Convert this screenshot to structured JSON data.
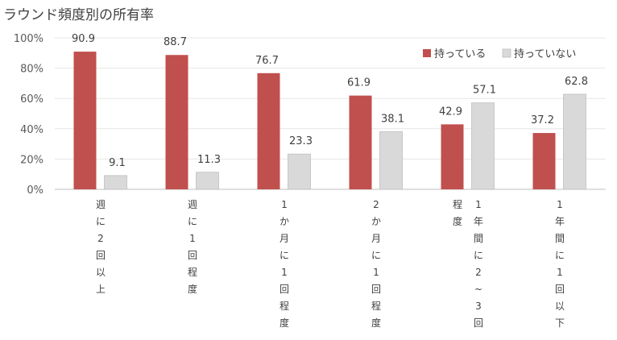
{
  "chart_data": {
    "type": "bar",
    "title": "ラウンド頻度別の所有率",
    "categories": [
      "週に2回以上",
      "週に1回程度",
      "1か月に1回程度",
      "2か月に1回程度",
      "1年間に2~3回程度",
      "1年間に1回以下"
    ],
    "category_columns": [
      [
        [
          "週",
          "に",
          "2",
          "回",
          "以",
          "上"
        ]
      ],
      [
        [
          "週",
          "に",
          "1",
          "回",
          "程",
          "度"
        ]
      ],
      [
        [
          "1",
          "か",
          "月",
          "に",
          "1",
          "回",
          "程",
          "度"
        ]
      ],
      [
        [
          "2",
          "か",
          "月",
          "に",
          "1",
          "回",
          "程",
          "度"
        ]
      ],
      [
        [
          "程",
          "度"
        ],
        [
          "1",
          "年",
          "間",
          "に",
          "2",
          "~",
          "3",
          "回"
        ]
      ],
      [
        [
          "1",
          "年",
          "間",
          "に",
          "1",
          "回",
          "以",
          "下"
        ]
      ]
    ],
    "series": [
      {
        "name": "持っている",
        "values": [
          90.9,
          88.7,
          76.7,
          61.9,
          42.9,
          37.2
        ],
        "color": "#c0504d"
      },
      {
        "name": "持っていない",
        "values": [
          9.1,
          11.3,
          23.3,
          38.1,
          57.1,
          62.8
        ],
        "color": "#d9d9d9"
      }
    ],
    "data_labels": [
      [
        "90.9",
        "88.7",
        "76.7",
        "61.9",
        "42.9",
        "37.2"
      ],
      [
        "9.1",
        "11.3",
        "23.3",
        "38.1",
        "57.1",
        "62.8"
      ]
    ],
    "ylim": [
      0,
      100
    ],
    "yticks": [
      "0%",
      "20%",
      "40%",
      "60%",
      "80%",
      "100%"
    ],
    "grid": true,
    "legend_position": "top-right",
    "xlabel": "",
    "ylabel": ""
  }
}
